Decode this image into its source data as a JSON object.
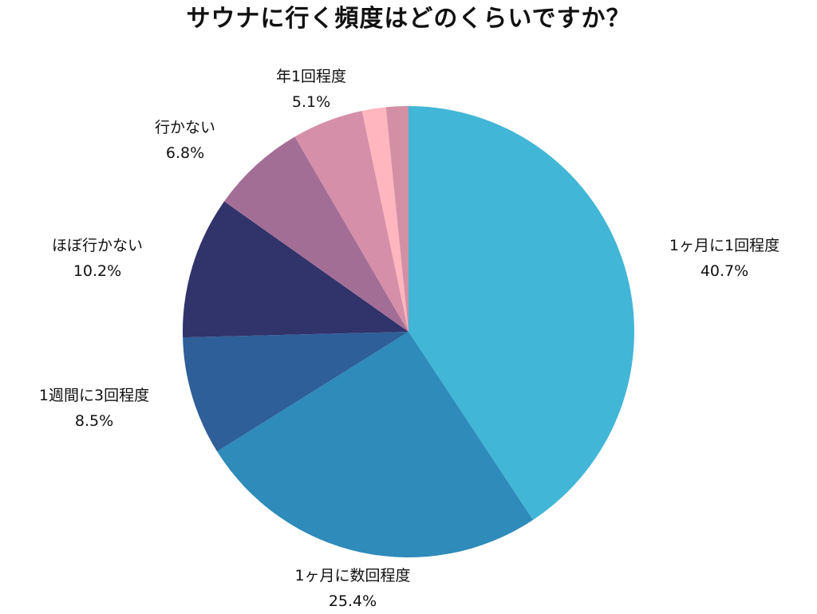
{
  "chart_data": {
    "type": "pie",
    "title": "サウナに行く頻度はどのくらいですか？",
    "start_angle_deg": 0,
    "direction": "clockwise",
    "slices": [
      {
        "label": "1ヶ月に1回程度",
        "value": 40.7,
        "value_text": "40.7%",
        "color": "#42B6D6",
        "show_label": true
      },
      {
        "label": "1ヶ月に数回程度",
        "value": 25.4,
        "value_text": "25.4%",
        "color": "#2E8BBA",
        "show_label": true
      },
      {
        "label": "1週間に3回程度",
        "value": 8.5,
        "value_text": "8.5%",
        "color": "#2E5F98",
        "show_label": true
      },
      {
        "label": "ほぼ行かない",
        "value": 10.2,
        "value_text": "10.2%",
        "color": "#31336B",
        "show_label": true
      },
      {
        "label": "行かない",
        "value": 6.8,
        "value_text": "6.8%",
        "color": "#A36E96",
        "show_label": true
      },
      {
        "label": "年1回程度",
        "value": 5.1,
        "value_text": "5.1%",
        "color": "#D58FA8",
        "show_label": true
      },
      {
        "label": "",
        "value": 1.7,
        "value_text": "",
        "color": "#FFB6BE",
        "show_label": false
      },
      {
        "label": "",
        "value": 1.6,
        "value_text": "",
        "color": "#D390A5",
        "show_label": false
      }
    ]
  }
}
